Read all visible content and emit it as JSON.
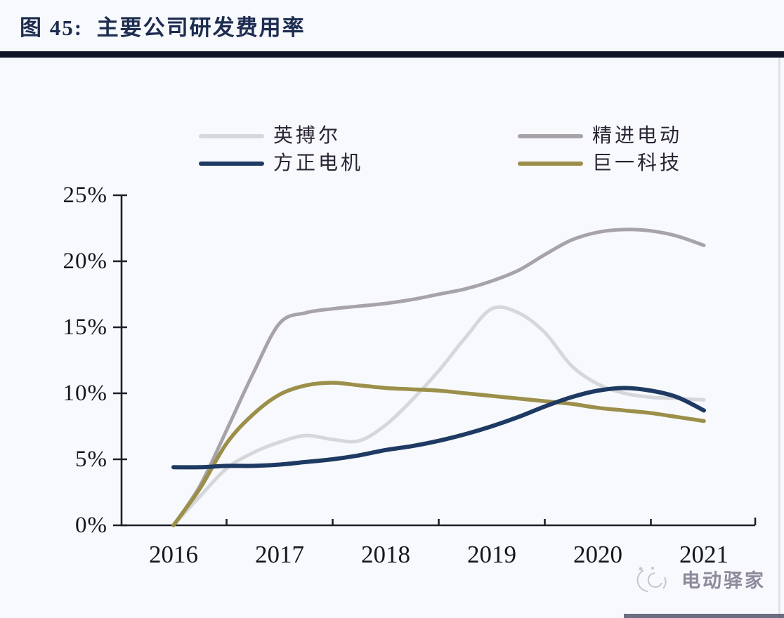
{
  "figure": {
    "title": "图 45:  主要公司研发费用率"
  },
  "watermark": {
    "text": "电动驿家",
    "icon": "sketch-logo"
  },
  "colors": {
    "background": "#f7f9fc",
    "title_text": "#1d2c50",
    "title_rule": "#0e1628",
    "axis": "#1f1f2b",
    "axis_text": "#16161c",
    "watermark_text": "#8e8a9c"
  },
  "chart_data": {
    "type": "line",
    "title": "主要公司研发费用率",
    "xlabel": "",
    "ylabel": "",
    "x_start": 2016,
    "x_step": 0.25,
    "xlim": [
      2015.5,
      2021.5
    ],
    "ylim": [
      0,
      25
    ],
    "grid": false,
    "legend_position": "top",
    "xticks": [
      "2016",
      "2017",
      "2018",
      "2019",
      "2020",
      "2021"
    ],
    "yticks": [
      "0%",
      "5%",
      "10%",
      "15%",
      "20%",
      "25%"
    ],
    "series": [
      {
        "name": "英搏尔",
        "color": "#d5d7da",
        "values": [
          0,
          2.2,
          4.3,
          5.5,
          6.3,
          6.8,
          6.5,
          6.4,
          7.6,
          9.5,
          11.7,
          14.2,
          16.4,
          16.1,
          14.6,
          12.1,
          10.7,
          10.0,
          9.7,
          9.6,
          9.5
        ]
      },
      {
        "name": "精进电动",
        "color": "#a7a3a9",
        "values": [
          0,
          3.0,
          7.2,
          11.5,
          15.3,
          16.1,
          16.4,
          16.6,
          16.8,
          17.1,
          17.5,
          17.9,
          18.5,
          19.3,
          20.5,
          21.6,
          22.2,
          22.4,
          22.3,
          21.9,
          21.2
        ]
      },
      {
        "name": "方正电机",
        "color": "#1e3a63",
        "values": [
          4.4,
          4.4,
          4.5,
          4.5,
          4.6,
          4.8,
          5.0,
          5.3,
          5.7,
          6.0,
          6.4,
          6.9,
          7.5,
          8.2,
          9.0,
          9.7,
          10.2,
          10.4,
          10.2,
          9.7,
          8.7
        ]
      },
      {
        "name": "巨一科技",
        "color": "#9c8f4a",
        "values": [
          0,
          2.8,
          6.2,
          8.4,
          9.9,
          10.6,
          10.8,
          10.6,
          10.4,
          10.3,
          10.2,
          10.0,
          9.8,
          9.6,
          9.4,
          9.2,
          8.9,
          8.7,
          8.5,
          8.2,
          7.9
        ]
      }
    ]
  }
}
